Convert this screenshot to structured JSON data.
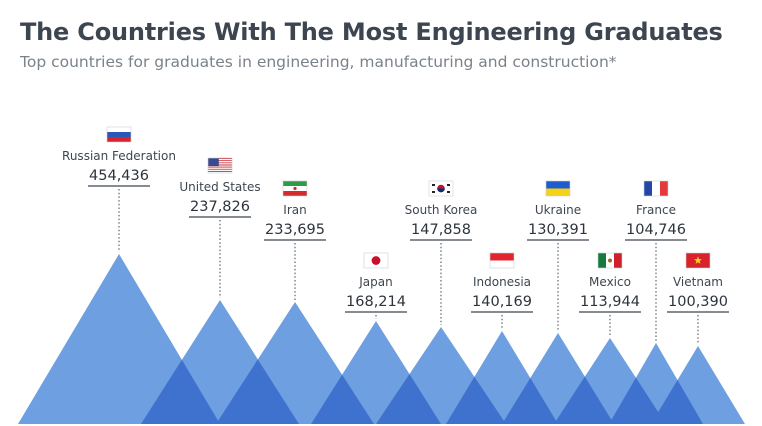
{
  "title": "The Countries With The Most Engineering Graduates",
  "subtitle": "Top countries for graduates in engineering, manufacturing and construction*",
  "chart_data": {
    "type": "bar",
    "categories": [
      "Russian Federation",
      "United States",
      "Iran",
      "Japan",
      "South Korea",
      "Indonesia",
      "Ukraine",
      "Mexico",
      "France",
      "Vietnam"
    ],
    "values": [
      454436,
      237826,
      233695,
      168214,
      147858,
      140169,
      130391,
      113944,
      104746,
      100390
    ],
    "value_labels": [
      "454,436",
      "237,826",
      "233,695",
      "168,214",
      "147,858",
      "140,169",
      "130,391",
      "113,944",
      "104,746",
      "100,390"
    ],
    "flags": [
      "russia-flag",
      "usa-flag",
      "iran-flag",
      "japan-flag",
      "south-korea-flag",
      "indonesia-flag",
      "ukraine-flag",
      "mexico-flag",
      "france-flag",
      "vietnam-flag"
    ],
    "colors": {
      "peak": "#6e9fe0",
      "overlap": "#3f72cf",
      "leader": "#3d4650"
    }
  }
}
